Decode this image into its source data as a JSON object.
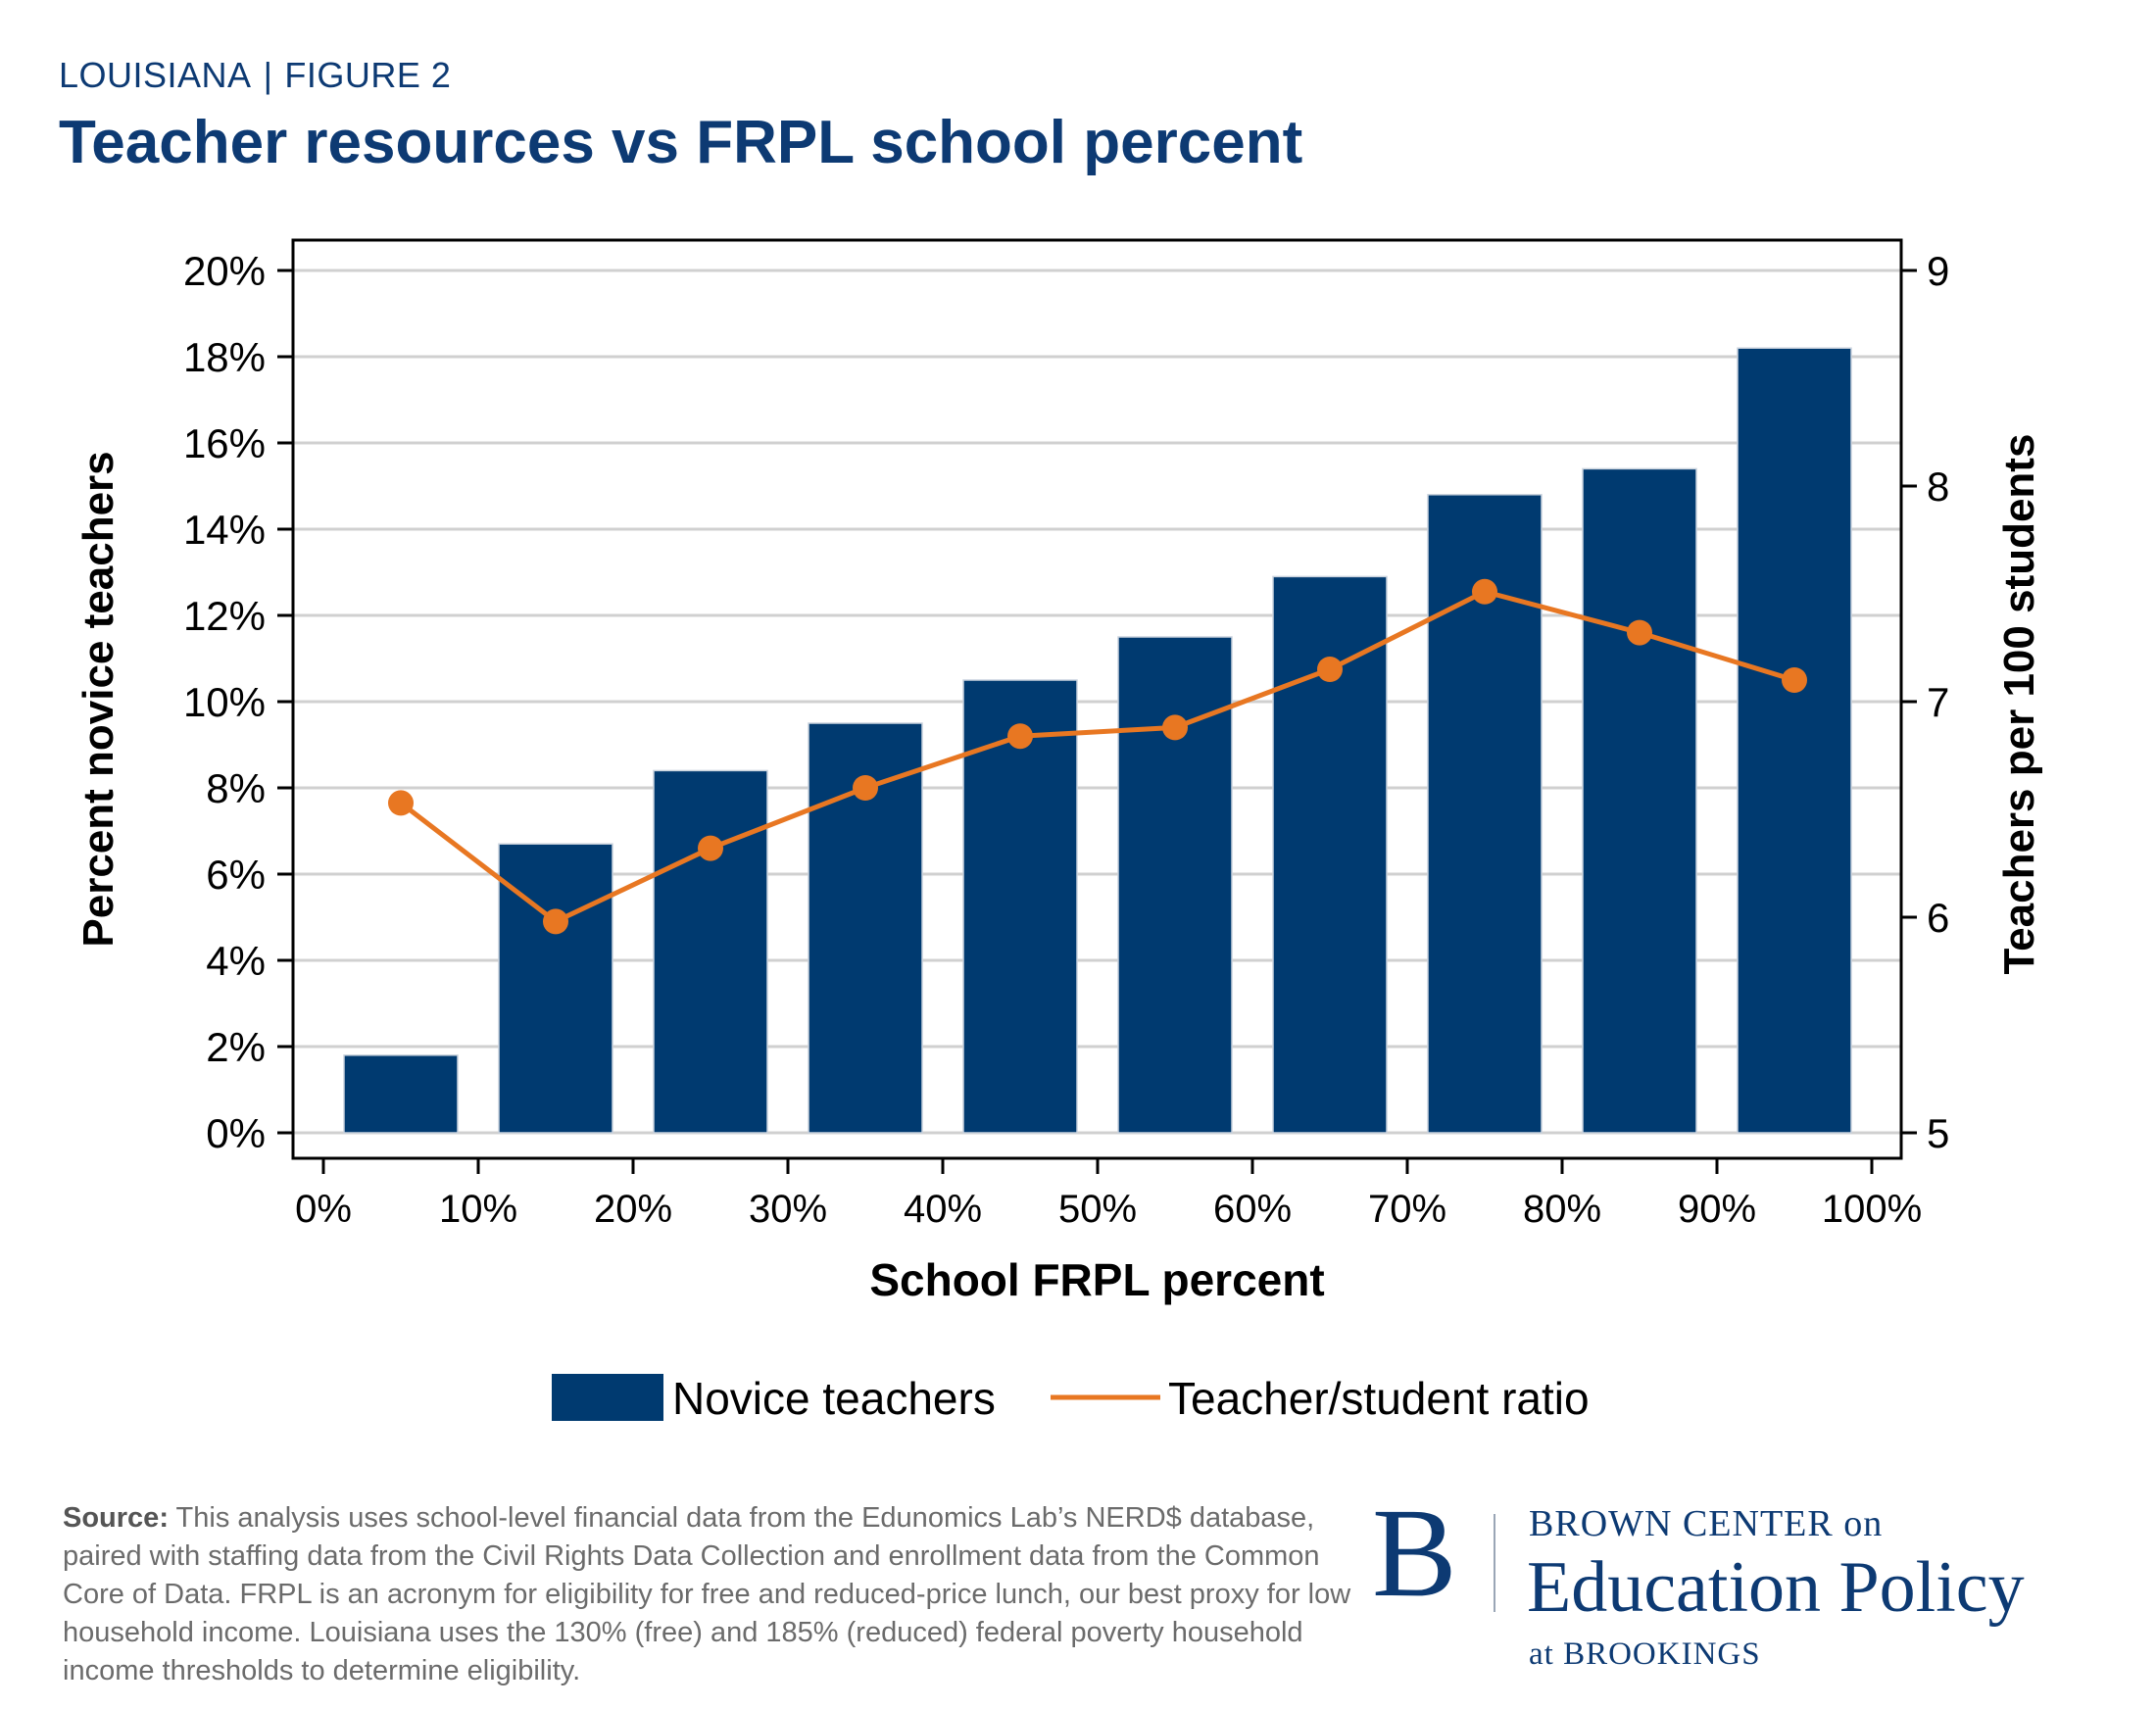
{
  "header": {
    "state": "LOUISIANA",
    "separator": "|",
    "figure": "FIGURE 2",
    "title": "Teacher resources vs FRPL school percent"
  },
  "chart_data": {
    "type": "bar",
    "title": "Teacher resources vs FRPL school percent",
    "xlabel": "School FRPL percent",
    "ylabel": "Percent novice teachers",
    "y2label": "Teachers per 100 students",
    "xlim": [
      0,
      100
    ],
    "ylim": [
      0,
      20
    ],
    "y2lim": [
      5,
      9
    ],
    "x_ticks": [
      "0%",
      "10%",
      "20%",
      "30%",
      "40%",
      "50%",
      "60%",
      "70%",
      "80%",
      "90%",
      "100%"
    ],
    "y_ticks": [
      "0%",
      "2%",
      "4%",
      "6%",
      "8%",
      "10%",
      "12%",
      "14%",
      "16%",
      "18%",
      "20%"
    ],
    "y2_ticks": [
      "5",
      "6",
      "7",
      "8",
      "9"
    ],
    "x": [
      5,
      15,
      25,
      35,
      45,
      55,
      65,
      75,
      85,
      95
    ],
    "series": [
      {
        "name": "Novice teachers",
        "kind": "bar",
        "axis": "left",
        "color": "#003a70",
        "values": [
          1.8,
          6.7,
          8.4,
          9.5,
          10.5,
          11.5,
          12.9,
          14.8,
          15.4,
          18.2
        ]
      },
      {
        "name": "Teacher/student ratio",
        "kind": "line",
        "axis": "right",
        "color": "#e87722",
        "values": [
          6.53,
          5.98,
          6.32,
          6.6,
          6.84,
          6.88,
          7.15,
          7.51,
          7.32,
          7.1
        ]
      }
    ],
    "grid": true,
    "legend": "bottom-center"
  },
  "footer": {
    "source_label": "Source:",
    "source_text": "This analysis uses school-level financial data from the Edunomics Lab’s NERD$ database, paired with staffing data from the Civil Rights Data Collection and enrollment data from the Common Core of Data. FRPL is an acronym for eligibility for free and reduced-price lunch, our best proxy for low household income. Louisiana uses the 130% (free) and 185% (reduced) federal poverty household income thresholds to determine eligibility."
  },
  "logo": {
    "letter": "B",
    "line1": "BROWN CENTER on",
    "line2": "Education Policy",
    "line3": "at BROOKINGS"
  }
}
